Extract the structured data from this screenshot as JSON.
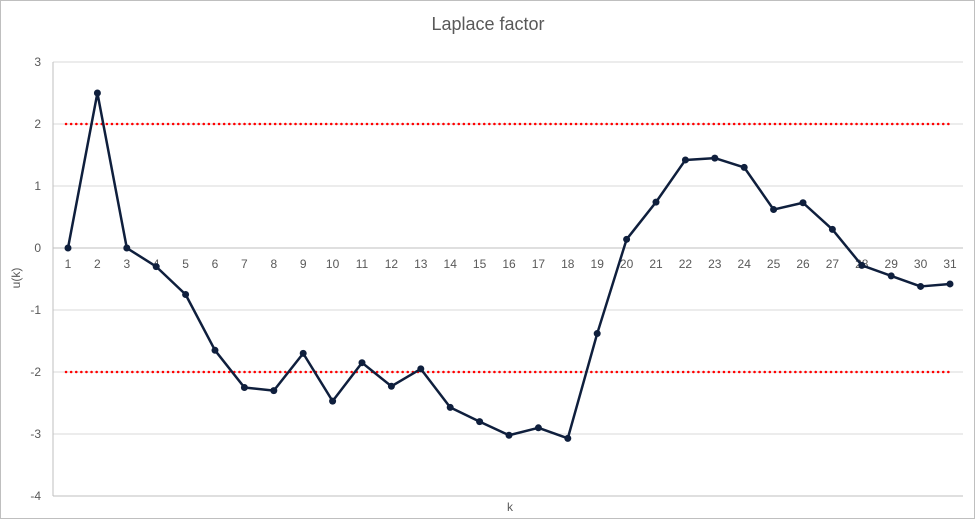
{
  "chart_data": {
    "type": "line",
    "title": "Laplace factor",
    "xlabel": "k",
    "ylabel": "u(k)",
    "ylim": [
      -4,
      3
    ],
    "yticks": [
      3,
      2,
      1,
      0,
      -1,
      -2,
      -3,
      -4
    ],
    "grid": "horizontal",
    "categories": [
      "1",
      "2",
      "3",
      "4",
      "5",
      "6",
      "7",
      "8",
      "9",
      "10",
      "11",
      "12",
      "13",
      "14",
      "15",
      "16",
      "17",
      "18",
      "19",
      "20",
      "21",
      "22",
      "23",
      "24",
      "25",
      "26",
      "27",
      "28",
      "29",
      "30",
      "31"
    ],
    "series": [
      {
        "values": [
          0,
          2.5,
          0,
          -0.3,
          -0.75,
          -1.65,
          -2.25,
          -2.3,
          -1.7,
          -2.47,
          -1.85,
          -2.23,
          -1.95,
          -2.57,
          -2.8,
          -3.02,
          -2.9,
          -3.07,
          -1.38,
          0.14,
          0.74,
          1.42,
          1.45,
          1.3,
          0.62,
          0.73,
          0.3,
          -0.28,
          -0.45,
          -0.62,
          -0.58
        ],
        "color": "#0f1f3d"
      }
    ],
    "reference_lines": [
      {
        "y": 2,
        "color": "#ff0000",
        "style": "dotted"
      },
      {
        "y": -2,
        "color": "#ff0000",
        "style": "dotted"
      }
    ]
  }
}
